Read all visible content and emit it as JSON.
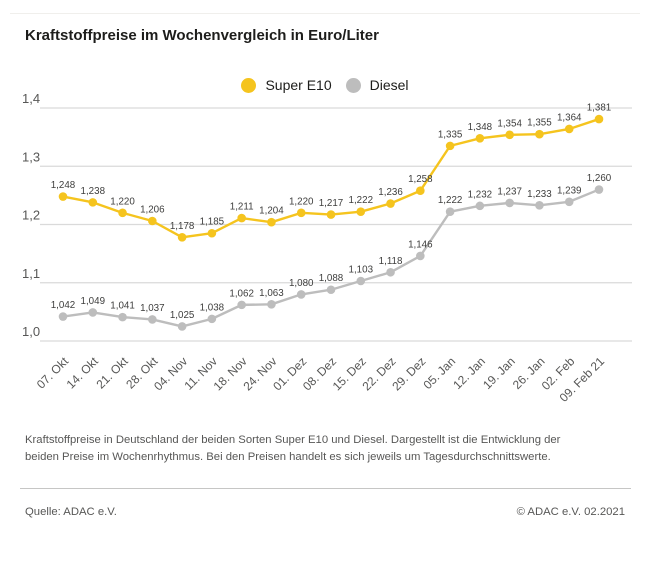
{
  "title": "Kraftstoffpreise im Wochenvergleich in Euro/Liter",
  "legend": [
    {
      "label": "Super E10",
      "color": "#f5c41e"
    },
    {
      "label": "Diesel",
      "color": "#bdbdbd"
    }
  ],
  "chart_data": {
    "type": "line",
    "title": "Kraftstoffpreise im Wochenvergleich in Euro/Liter",
    "xlabel": "",
    "ylabel": "Euro/Liter",
    "ylim": [
      1.0,
      1.4
    ],
    "yticks": [
      1.4,
      1.3,
      1.2,
      1.1,
      1.0
    ],
    "grid": true,
    "legend_position": "top-center",
    "decimal_separator": ",",
    "categories": [
      "07. Okt",
      "14. Okt",
      "21. Okt",
      "28. Okt",
      "04. Nov",
      "11. Nov",
      "18. Nov",
      "24. Nov",
      "01. Dez",
      "08. Dez",
      "15. Dez",
      "22. Dez",
      "29. Dez",
      "05. Jan",
      "12. Jan",
      "19. Jan",
      "26. Jan",
      "02. Feb",
      "09. Feb 21"
    ],
    "series": [
      {
        "name": "Super E10",
        "color": "#f5c41e",
        "values": [
          1.248,
          1.238,
          1.22,
          1.206,
          1.178,
          1.185,
          1.211,
          1.204,
          1.22,
          1.217,
          1.222,
          1.236,
          1.258,
          1.335,
          1.348,
          1.354,
          1.355,
          1.364,
          1.381
        ]
      },
      {
        "name": "Diesel",
        "color": "#bdbdbd",
        "values": [
          1.042,
          1.049,
          1.041,
          1.037,
          1.025,
          1.038,
          1.062,
          1.063,
          1.08,
          1.088,
          1.103,
          1.118,
          1.146,
          1.222,
          1.232,
          1.237,
          1.233,
          1.239,
          1.26
        ]
      }
    ],
    "colors": {
      "gridline": "#dadada",
      "axis_text": "#575756",
      "data_label_text": "#3e3e3d"
    }
  },
  "description": "Kraftstoffpreise in Deutschland der beiden Sorten Super E10 und Diesel. Dargestellt ist die Entwicklung der beiden Preise im Wochenrhythmus. Bei den Preisen handelt es sich jeweils um Tagesdurchschnittswerte.",
  "footer": {
    "source": "Quelle: ADAC e.V.",
    "copyright": "© ADAC e.V. 02.2021"
  }
}
